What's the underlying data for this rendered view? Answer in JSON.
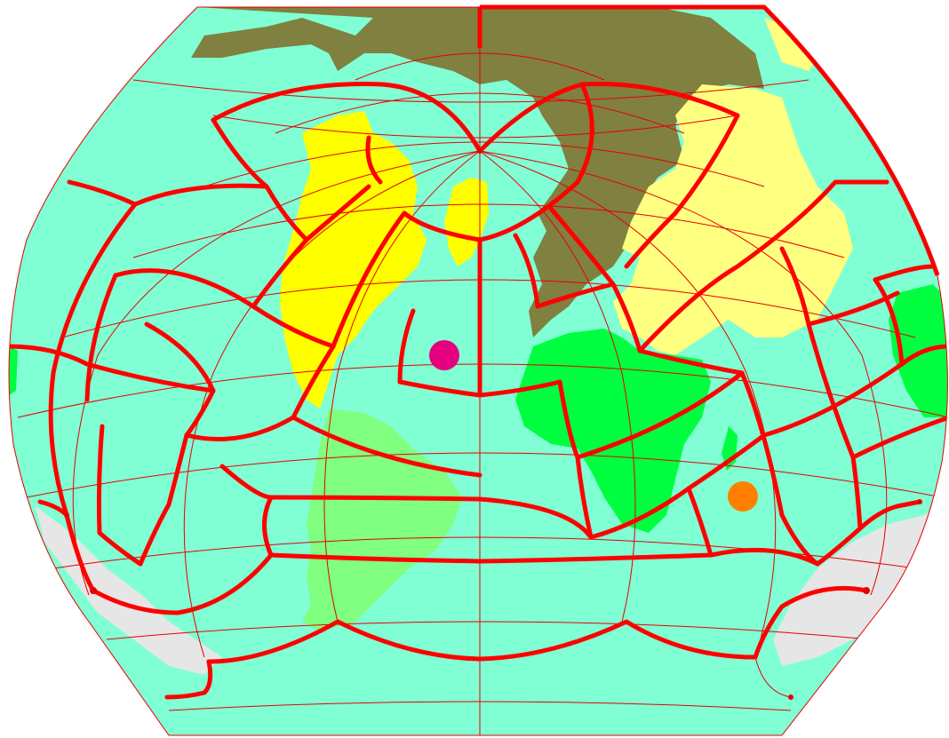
{
  "colors": {
    "ocean": "#80ffd4",
    "eurasia_north": "#808040",
    "asia_south": "#ffff80",
    "north_america": "#ffff00",
    "south_america": "#80ff80",
    "africa_australia": "#00ff40",
    "antarctica": "#e6e6e6",
    "grid_line": "#e60000",
    "zone_boundary": "#ff0000"
  },
  "markers": [
    {
      "id": "north-atlantic-marker",
      "color": "#e6007e"
    },
    {
      "id": "indian-ocean-marker",
      "color": "#ff8000"
    }
  ],
  "regions": [
    "north-america",
    "greenland",
    "eurasia-north",
    "asia-south",
    "africa",
    "madagascar",
    "south-america",
    "australia",
    "antarctica"
  ]
}
